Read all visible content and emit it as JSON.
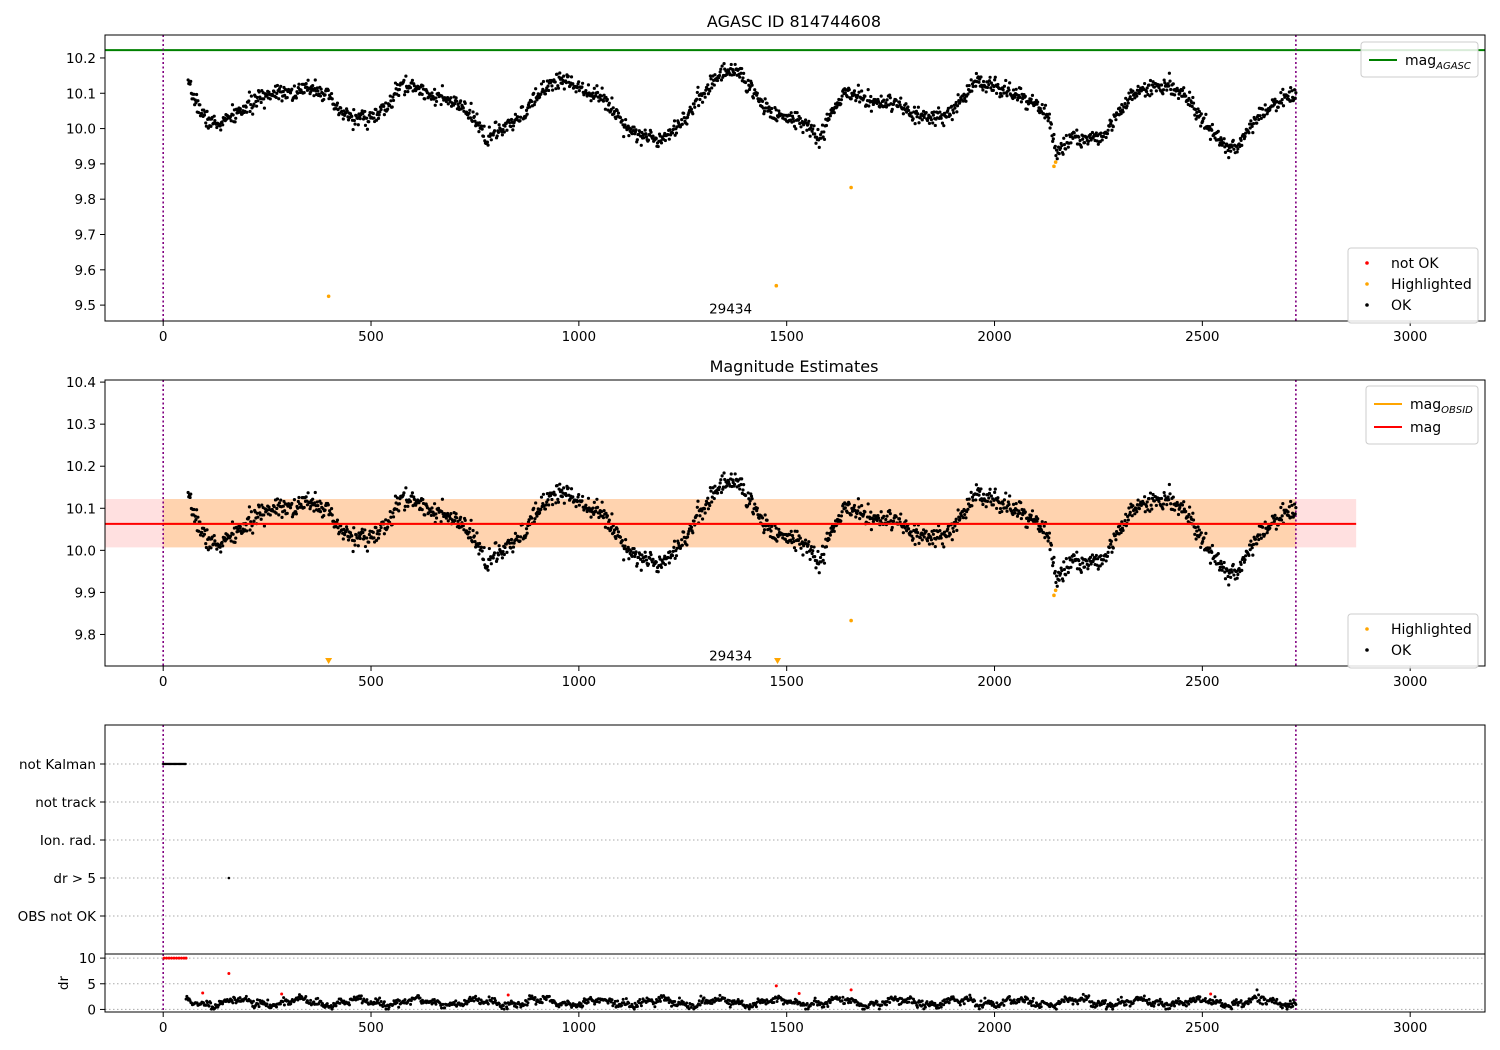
{
  "chart_data": [
    {
      "id": "agasc",
      "type": "scatter",
      "title": "AGASC ID 814744608",
      "xlim": [
        -140,
        3180
      ],
      "ylim": [
        9.455,
        10.265
      ],
      "xticks": [
        0,
        500,
        1000,
        1500,
        2000,
        2500,
        3000
      ],
      "yticks": [
        9.5,
        9.6,
        9.7,
        9.8,
        9.9,
        10.0,
        10.1,
        10.2
      ],
      "mag_agasc": 10.222,
      "obs_boundaries": [
        0,
        2725
      ],
      "obsid_annotation": {
        "text": "29434",
        "x": 1365,
        "y": 9.49
      },
      "legend_top": [
        {
          "label": "mag",
          "sub": "AGASC",
          "color": "#008000"
        }
      ],
      "legend_bottom": [
        {
          "label": "not OK",
          "color": "#ff0000"
        },
        {
          "label": "Highlighted",
          "color": "#ffa500"
        },
        {
          "label": "OK",
          "color": "#000000"
        }
      ],
      "series": [
        {
          "name": "OK",
          "color": "#000000",
          "trend": [
            [
              60,
              10.12
            ],
            [
              100,
              10.03
            ],
            [
              130,
              10.01
            ],
            [
              160,
              10.03
            ],
            [
              200,
              10.06
            ],
            [
              240,
              10.09
            ],
            [
              280,
              10.11
            ],
            [
              320,
              10.1
            ],
            [
              360,
              10.12
            ],
            [
              390,
              10.1
            ],
            [
              420,
              10.05
            ],
            [
              460,
              10.03
            ],
            [
              500,
              10.03
            ],
            [
              540,
              10.06
            ],
            [
              570,
              10.12
            ],
            [
              600,
              10.12
            ],
            [
              640,
              10.1
            ],
            [
              680,
              10.08
            ],
            [
              720,
              10.06
            ],
            [
              760,
              10.01
            ],
            [
              780,
              9.97
            ],
            [
              800,
              9.99
            ],
            [
              840,
              10.01
            ],
            [
              880,
              10.06
            ],
            [
              920,
              10.12
            ],
            [
              960,
              10.14
            ],
            [
              1000,
              10.12
            ],
            [
              1040,
              10.1
            ],
            [
              1080,
              10.06
            ],
            [
              1110,
              10.01
            ],
            [
              1150,
              9.98
            ],
            [
              1190,
              9.97
            ],
            [
              1230,
              10.0
            ],
            [
              1270,
              10.05
            ],
            [
              1310,
              10.12
            ],
            [
              1350,
              10.16
            ],
            [
              1380,
              10.17
            ],
            [
              1420,
              10.1
            ],
            [
              1460,
              10.05
            ],
            [
              1500,
              10.03
            ],
            [
              1540,
              10.02
            ],
            [
              1580,
              9.97
            ],
            [
              1610,
              10.05
            ],
            [
              1640,
              10.1
            ],
            [
              1680,
              10.09
            ],
            [
              1720,
              10.07
            ],
            [
              1760,
              10.07
            ],
            [
              1800,
              10.04
            ],
            [
              1840,
              10.03
            ],
            [
              1880,
              10.03
            ],
            [
              1920,
              10.08
            ],
            [
              1960,
              10.14
            ],
            [
              2000,
              10.12
            ],
            [
              2040,
              10.1
            ],
            [
              2080,
              10.08
            ],
            [
              2110,
              10.06
            ],
            [
              2130,
              10.03
            ],
            [
              2150,
              9.93
            ],
            [
              2180,
              9.97
            ],
            [
              2220,
              9.97
            ],
            [
              2260,
              9.98
            ],
            [
              2300,
              10.05
            ],
            [
              2340,
              10.1
            ],
            [
              2380,
              10.12
            ],
            [
              2420,
              10.12
            ],
            [
              2460,
              10.1
            ],
            [
              2500,
              10.02
            ],
            [
              2540,
              9.97
            ],
            [
              2580,
              9.94
            ],
            [
              2610,
              10.0
            ],
            [
              2650,
              10.05
            ],
            [
              2690,
              10.08
            ],
            [
              2725,
              10.1
            ]
          ],
          "noise": 0.022,
          "n_points": 1700,
          "seed": 7
        },
        {
          "name": "Highlighted",
          "color": "#ffa500",
          "points": [
            [
              398,
              9.525
            ],
            [
              1475,
              9.555
            ],
            [
              1655,
              9.833
            ],
            [
              2143,
              9.893
            ],
            [
              2147,
              9.905
            ]
          ]
        }
      ]
    },
    {
      "id": "estimates",
      "type": "scatter",
      "title": "Magnitude Estimates",
      "xlim": [
        -140,
        3180
      ],
      "ylim": [
        9.725,
        10.405
      ],
      "xticks": [
        0,
        500,
        1000,
        1500,
        2000,
        2500,
        3000
      ],
      "yticks": [
        9.8,
        9.9,
        10.0,
        10.1,
        10.2,
        10.3,
        10.4
      ],
      "mag": 10.063,
      "mag_band": [
        10.007,
        10.122
      ],
      "mag_band_xrange": [
        -140,
        2870
      ],
      "mag_obsid": 10.063,
      "mag_obsid_band_xrange": [
        0,
        2725
      ],
      "obs_boundaries": [
        0,
        2725
      ],
      "obsid_annotation": {
        "text": "29434",
        "x": 1365,
        "y": 9.75
      },
      "legend_top": [
        {
          "label": "mag",
          "sub": "OBSID",
          "color": "#ffa500"
        },
        {
          "label": "mag",
          "sub": "",
          "color": "#ff0000"
        }
      ],
      "legend_bottom": [
        {
          "label": "Highlighted",
          "color": "#ffa500"
        },
        {
          "label": "OK",
          "color": "#000000"
        }
      ],
      "series": [
        {
          "name": "OK",
          "color": "#000000",
          "same_as": "agasc"
        },
        {
          "name": "Highlighted",
          "color": "#ffa500",
          "points": [
            [
              1655,
              9.833
            ],
            [
              2143,
              9.893
            ],
            [
              2147,
              9.905
            ]
          ],
          "below_range_markers": [
            398,
            1478
          ]
        }
      ]
    },
    {
      "id": "flags",
      "type": "scatter",
      "xlim": [
        -140,
        3180
      ],
      "categories": [
        "not Kalman",
        "not track",
        "Ion. rad.",
        "dr > 5",
        "OBS not OK"
      ],
      "obs_boundaries": [
        0,
        2725
      ],
      "flag_points": [
        {
          "category": "not Kalman",
          "x_range": [
            0,
            55
          ],
          "color": "#000000"
        },
        {
          "category": "dr > 5",
          "x": 158,
          "color": "#000000"
        }
      ]
    },
    {
      "id": "dr",
      "type": "scatter",
      "xlim": [
        -140,
        3180
      ],
      "ylim": [
        -0.5,
        10.8
      ],
      "xticks": [
        0,
        500,
        1000,
        1500,
        2000,
        2500,
        3000
      ],
      "yticks": [
        0,
        5,
        10
      ],
      "ylabel": "dr",
      "obs_boundaries": [
        0,
        2725
      ],
      "series": [
        {
          "name": "OK",
          "color": "#000000",
          "x_range": [
            55,
            2725
          ],
          "base": 1.4,
          "noise": 0.7,
          "n_points": 1400,
          "seed": 11
        },
        {
          "name": "not OK",
          "color": "#ff0000",
          "points": [
            [
              2,
              10
            ],
            [
              8,
              10
            ],
            [
              14,
              10
            ],
            [
              20,
              10
            ],
            [
              26,
              10
            ],
            [
              32,
              10
            ],
            [
              38,
              10
            ],
            [
              44,
              10
            ],
            [
              50,
              10
            ],
            [
              55,
              10
            ],
            [
              158,
              7
            ],
            [
              95,
              3.2
            ],
            [
              285,
              3.0
            ],
            [
              830,
              2.8
            ],
            [
              1475,
              4.6
            ],
            [
              1530,
              3.1
            ],
            [
              1655,
              3.8
            ],
            [
              2520,
              3.0
            ]
          ]
        }
      ]
    }
  ]
}
